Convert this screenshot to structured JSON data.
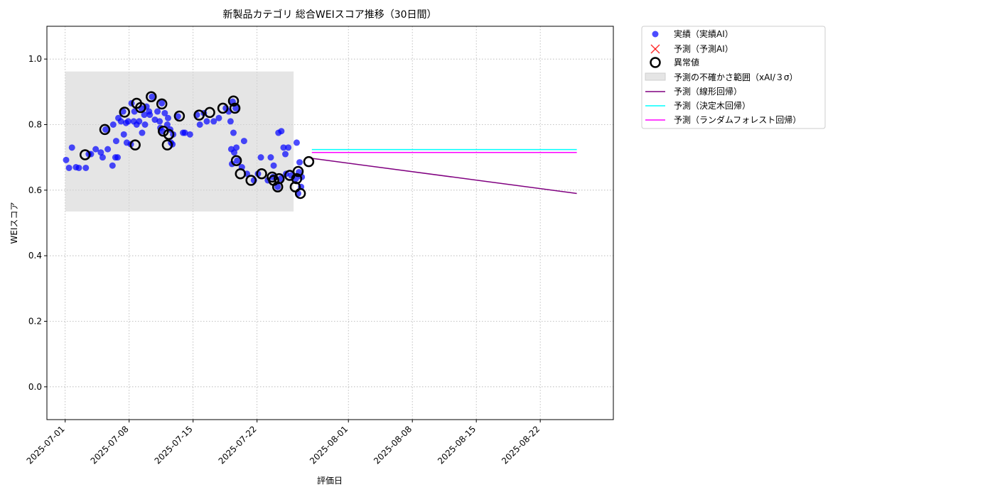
{
  "chart_data": {
    "type": "scatter",
    "title": "新製品カテゴリ 総合WEIスコア推移（30日間）",
    "xlabel": "評価日",
    "ylabel": "WEIスコア",
    "xlim": [
      "2025-06-29",
      "2025-08-30"
    ],
    "ylim": [
      -0.1,
      1.1
    ],
    "y_ticks": [
      "0.0",
      "0.2",
      "0.4",
      "0.6",
      "0.8",
      "1.0"
    ],
    "x_ticks": [
      "2025-07-01",
      "2025-07-08",
      "2025-07-15",
      "2025-07-22",
      "2025-08-01",
      "2025-08-08",
      "2025-08-15",
      "2025-08-22"
    ],
    "grid": true,
    "legend_position": "outside-upper-right",
    "colors": {
      "actual": "#0000ff",
      "predicted": "#ff0000",
      "anomaly": "#000000",
      "uncertainty": "#d3d3d3",
      "linear": "#800080",
      "tree": "#00ffff",
      "forest": "#ff00ff"
    },
    "legend": {
      "actual": "実績（実績AI）",
      "predicted": "予測（予測AI）",
      "anomaly": "異常値",
      "uncertainty": "予測の不確かさ範囲（xAI/３σ）",
      "linear": "予測（線形回帰）",
      "tree": "予測（決定木回帰）",
      "forest": "予測（ランダムフォレスト回帰）"
    },
    "uncertainty_band": {
      "x": [
        "2025-07-01",
        "2025-07-26"
      ],
      "y": [
        0.535,
        0.962
      ]
    },
    "actual": [
      [
        "2025-07-01",
        0.692
      ],
      [
        "2025-07-01",
        0.668
      ],
      [
        "2025-07-01",
        0.73
      ],
      [
        "2025-07-02",
        0.67
      ],
      [
        "2025-07-02",
        0.668
      ],
      [
        "2025-07-03",
        0.71
      ],
      [
        "2025-07-03",
        0.668
      ],
      [
        "2025-07-03",
        0.71
      ],
      [
        "2025-07-04",
        0.715
      ],
      [
        "2025-07-04",
        0.725
      ],
      [
        "2025-07-05",
        0.725
      ],
      [
        "2025-07-05",
        0.7
      ],
      [
        "2025-07-05",
        0.785
      ],
      [
        "2025-07-06",
        0.7
      ],
      [
        "2025-07-06",
        0.675
      ],
      [
        "2025-07-06",
        0.7
      ],
      [
        "2025-07-06",
        0.82
      ],
      [
        "2025-07-06",
        0.8
      ],
      [
        "2025-07-06",
        0.75
      ],
      [
        "2025-07-07",
        0.81
      ],
      [
        "2025-07-07",
        0.84
      ],
      [
        "2025-07-07",
        0.805
      ],
      [
        "2025-07-07",
        0.81
      ],
      [
        "2025-07-07",
        0.77
      ],
      [
        "2025-07-07",
        0.745
      ],
      [
        "2025-07-08",
        0.74
      ],
      [
        "2025-07-08",
        0.81
      ],
      [
        "2025-07-08",
        0.8
      ],
      [
        "2025-07-08",
        0.865
      ],
      [
        "2025-07-08",
        0.84
      ],
      [
        "2025-07-09",
        0.855
      ],
      [
        "2025-07-09",
        0.85
      ],
      [
        "2025-07-09",
        0.83
      ],
      [
        "2025-07-09",
        0.81
      ],
      [
        "2025-07-09",
        0.775
      ],
      [
        "2025-07-09",
        0.8
      ],
      [
        "2025-07-10",
        0.84
      ],
      [
        "2025-07-10",
        0.885
      ],
      [
        "2025-07-10",
        0.815
      ],
      [
        "2025-07-10",
        0.83
      ],
      [
        "2025-07-11",
        0.865
      ],
      [
        "2025-07-11",
        0.835
      ],
      [
        "2025-07-11",
        0.81
      ],
      [
        "2025-07-11",
        0.78
      ],
      [
        "2025-07-11",
        0.84
      ],
      [
        "2025-07-11",
        0.79
      ],
      [
        "2025-07-12",
        0.74
      ],
      [
        "2025-07-12",
        0.8
      ],
      [
        "2025-07-12",
        0.785
      ],
      [
        "2025-07-12",
        0.77
      ],
      [
        "2025-07-12",
        0.82
      ],
      [
        "2025-07-12",
        0.745
      ],
      [
        "2025-07-13",
        0.775
      ],
      [
        "2025-07-13",
        0.825
      ],
      [
        "2025-07-14",
        0.77
      ],
      [
        "2025-07-14",
        0.775
      ],
      [
        "2025-07-15",
        0.83
      ],
      [
        "2025-07-15",
        0.8
      ],
      [
        "2025-07-16",
        0.835
      ],
      [
        "2025-07-16",
        0.81
      ],
      [
        "2025-07-17",
        0.82
      ],
      [
        "2025-07-17",
        0.81
      ],
      [
        "2025-07-18",
        0.85
      ],
      [
        "2025-07-18",
        0.84
      ],
      [
        "2025-07-19",
        0.87
      ],
      [
        "2025-07-19",
        0.85
      ],
      [
        "2025-07-19",
        0.81
      ],
      [
        "2025-07-19",
        0.775
      ],
      [
        "2025-07-19",
        0.73
      ],
      [
        "2025-07-19",
        0.725
      ],
      [
        "2025-07-19",
        0.715
      ],
      [
        "2025-07-19",
        0.69
      ],
      [
        "2025-07-19",
        0.68
      ],
      [
        "2025-07-20",
        0.75
      ],
      [
        "2025-07-20",
        0.65
      ],
      [
        "2025-07-20",
        0.67
      ],
      [
        "2025-07-21",
        0.63
      ],
      [
        "2025-07-22",
        0.65
      ],
      [
        "2025-07-22",
        0.7
      ],
      [
        "2025-07-23",
        0.64
      ],
      [
        "2025-07-23",
        0.63
      ],
      [
        "2025-07-23",
        0.7
      ],
      [
        "2025-07-23",
        0.675
      ],
      [
        "2025-07-24",
        0.61
      ],
      [
        "2025-07-24",
        0.635
      ],
      [
        "2025-07-24",
        0.73
      ],
      [
        "2025-07-24",
        0.775
      ],
      [
        "2025-07-24",
        0.78
      ],
      [
        "2025-07-25",
        0.71
      ],
      [
        "2025-07-25",
        0.73
      ],
      [
        "2025-07-25",
        0.645
      ],
      [
        "2025-07-25",
        0.65
      ],
      [
        "2025-07-26",
        0.59
      ],
      [
        "2025-07-26",
        0.61
      ],
      [
        "2025-07-26",
        0.635
      ],
      [
        "2025-07-26",
        0.655
      ],
      [
        "2025-07-26",
        0.64
      ],
      [
        "2025-07-26",
        0.745
      ],
      [
        "2025-07-26",
        0.685
      ]
    ],
    "anomalies": [
      [
        "2025-07-03",
        0.708
      ],
      [
        "2025-07-05",
        0.785
      ],
      [
        "2025-07-07",
        0.838
      ],
      [
        "2025-07-08",
        0.738
      ],
      [
        "2025-07-08",
        0.865
      ],
      [
        "2025-07-09",
        0.852
      ],
      [
        "2025-07-10",
        0.885
      ],
      [
        "2025-07-11",
        0.863
      ],
      [
        "2025-07-11",
        0.78
      ],
      [
        "2025-07-12",
        0.738
      ],
      [
        "2025-07-12",
        0.77
      ],
      [
        "2025-07-13",
        0.826
      ],
      [
        "2025-07-15",
        0.829
      ],
      [
        "2025-07-16",
        0.837
      ],
      [
        "2025-07-18",
        0.85
      ],
      [
        "2025-07-19",
        0.872
      ],
      [
        "2025-07-19",
        0.85
      ],
      [
        "2025-07-19",
        0.69
      ],
      [
        "2025-07-20",
        0.65
      ],
      [
        "2025-07-21",
        0.63
      ],
      [
        "2025-07-22",
        0.65
      ],
      [
        "2025-07-23",
        0.64
      ],
      [
        "2025-07-23",
        0.63
      ],
      [
        "2025-07-24",
        0.61
      ],
      [
        "2025-07-24",
        0.635
      ],
      [
        "2025-07-25",
        0.645
      ],
      [
        "2025-07-26",
        0.59
      ],
      [
        "2025-07-26",
        0.61
      ],
      [
        "2025-07-26",
        0.635
      ],
      [
        "2025-07-26",
        0.657
      ],
      [
        "2025-07-27",
        0.687
      ]
    ],
    "predictions": {
      "linear": [
        [
          "2025-07-28",
          0.697
        ],
        [
          "2025-08-26",
          0.59
        ]
      ],
      "tree": [
        [
          "2025-07-28",
          0.724
        ],
        [
          "2025-08-26",
          0.724
        ]
      ],
      "forest": [
        [
          "2025-07-28",
          0.715
        ],
        [
          "2025-08-26",
          0.715
        ]
      ]
    }
  }
}
